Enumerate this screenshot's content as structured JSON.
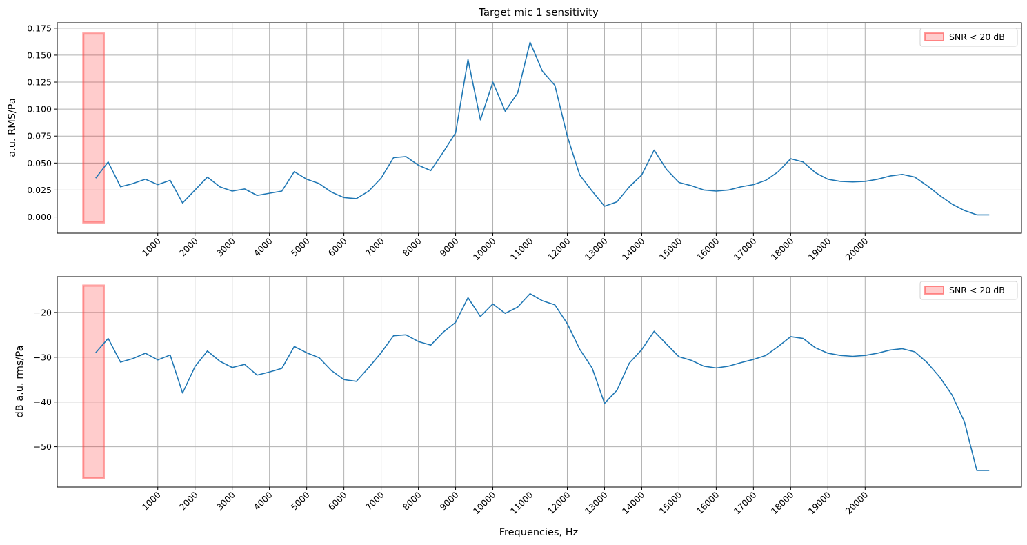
{
  "chart_data": [
    {
      "type": "line",
      "title": "Target mic 1 sensitivity",
      "xlabel": "",
      "ylabel": "a.u. RMS/Pa",
      "xlim": [
        -1700,
        24200
      ],
      "ylim": [
        -0.015,
        0.18
      ],
      "grid": true,
      "legend": {
        "placement": "top-right",
        "entries": [
          "SNR < 20 dB"
        ]
      },
      "x_ticks": [
        1000,
        2000,
        3000,
        4000,
        5000,
        6000,
        7000,
        8000,
        9000,
        10000,
        11000,
        12000,
        13000,
        14000,
        15000,
        16000,
        17000,
        18000,
        19000,
        20000
      ],
      "x_tick_labels": [
        "1000",
        "2000",
        "3000",
        "4000",
        "5000",
        "6000",
        "7000",
        "8000",
        "9000",
        "10000",
        "11000",
        "12000",
        "13000",
        "14000",
        "15000",
        "16000",
        "17000",
        "18000",
        "19000",
        "20000"
      ],
      "y_ticks": [
        0.0,
        0.025,
        0.05,
        0.075,
        0.1,
        0.125,
        0.15,
        0.175
      ],
      "y_tick_labels": [
        "0.000",
        "0.025",
        "0.050",
        "0.075",
        "0.100",
        "0.125",
        "0.150",
        "0.175"
      ],
      "shaded_region": {
        "label": "SNR < 20 dB",
        "x": [
          -1000,
          -450
        ],
        "y": [
          -0.005,
          0.17
        ]
      },
      "series": [
        {
          "x": [
            -667,
            -333,
            0,
            333,
            667,
            1000,
            1333,
            1667,
            2000,
            2333,
            2667,
            3000,
            3333,
            3667,
            4000,
            4333,
            4667,
            5000,
            5333,
            5667,
            6000,
            6333,
            6667,
            7000,
            7333,
            7667,
            8000,
            8333,
            8667,
            9000,
            9333,
            9667,
            10000,
            10333,
            10667,
            11000,
            11333,
            11667,
            12000,
            12333,
            12667,
            13000,
            13333,
            13667,
            14000,
            14333,
            14667,
            15000,
            15333,
            15667,
            16000,
            16333,
            16667,
            17000,
            17333,
            17667,
            18000,
            18333,
            18667,
            19000,
            19333,
            19667,
            20000,
            20333,
            20667,
            21000,
            21333,
            21667,
            22000,
            22333,
            22667,
            23000,
            23333
          ],
          "values": [
            0.036,
            0.051,
            0.028,
            0.031,
            0.035,
            0.03,
            0.034,
            0.013,
            0.025,
            0.037,
            0.028,
            0.024,
            0.026,
            0.02,
            0.022,
            0.024,
            0.042,
            0.035,
            0.031,
            0.023,
            0.018,
            0.017,
            0.024,
            0.036,
            0.055,
            0.056,
            0.048,
            0.043,
            0.06,
            0.078,
            0.146,
            0.09,
            0.125,
            0.098,
            0.115,
            0.162,
            0.135,
            0.122,
            0.075,
            0.039,
            0.024,
            0.01,
            0.014,
            0.028,
            0.039,
            0.062,
            0.044,
            0.032,
            0.029,
            0.025,
            0.024,
            0.025,
            0.028,
            0.03,
            0.034,
            0.042,
            0.054,
            0.051,
            0.041,
            0.035,
            0.033,
            0.0325,
            0.033,
            0.035,
            0.038,
            0.0395,
            0.037,
            0.029,
            0.02,
            0.012,
            0.006,
            0.002,
            0.002
          ]
        }
      ]
    },
    {
      "type": "line",
      "title": "",
      "xlabel": "Frequencies, Hz",
      "ylabel": "dB a.u. rms/Pa",
      "xlim": [
        -1700,
        24200
      ],
      "ylim": [
        -59,
        -12
      ],
      "grid": true,
      "legend": {
        "placement": "top-right",
        "entries": [
          "SNR < 20 dB"
        ]
      },
      "x_ticks": [
        1000,
        2000,
        3000,
        4000,
        5000,
        6000,
        7000,
        8000,
        9000,
        10000,
        11000,
        12000,
        13000,
        14000,
        15000,
        16000,
        17000,
        18000,
        19000,
        20000
      ],
      "x_tick_labels": [
        "1000",
        "2000",
        "3000",
        "4000",
        "5000",
        "6000",
        "7000",
        "8000",
        "9000",
        "10000",
        "11000",
        "12000",
        "13000",
        "14000",
        "15000",
        "16000",
        "17000",
        "18000",
        "19000",
        "20000"
      ],
      "y_ticks": [
        -50,
        -40,
        -30,
        -20
      ],
      "y_tick_labels": [
        "−50",
        "−40",
        "−30",
        "−20"
      ],
      "shaded_region": {
        "label": "SNR < 20 dB",
        "x": [
          -1000,
          -450
        ],
        "y": [
          -57,
          -14
        ]
      },
      "series": [
        {
          "x": [
            -667,
            -333,
            0,
            333,
            667,
            1000,
            1333,
            1667,
            2000,
            2333,
            2667,
            3000,
            3333,
            3667,
            4000,
            4333,
            4667,
            5000,
            5333,
            5667,
            6000,
            6333,
            6667,
            7000,
            7333,
            7667,
            8000,
            8333,
            8667,
            9000,
            9333,
            9667,
            10000,
            10333,
            10667,
            11000,
            11333,
            11667,
            12000,
            12333,
            12667,
            13000,
            13333,
            13667,
            14000,
            14333,
            14667,
            15000,
            15333,
            15667,
            16000,
            16333,
            16667,
            17000,
            17333,
            17667,
            18000,
            18333,
            18667,
            19000,
            19333,
            19667,
            20000,
            20333,
            20667,
            21000,
            21333,
            21667,
            22000,
            22333,
            22667,
            23000,
            23333
          ],
          "values": [
            -29.0,
            -25.8,
            -31.1,
            -30.3,
            -29.1,
            -30.6,
            -29.5,
            -38.0,
            -32.1,
            -28.6,
            -30.9,
            -32.3,
            -31.6,
            -34.0,
            -33.3,
            -32.5,
            -27.6,
            -29.0,
            -30.1,
            -33.0,
            -35.0,
            -35.4,
            -32.3,
            -29.0,
            -25.2,
            -25.0,
            -26.5,
            -27.3,
            -24.4,
            -22.2,
            -16.7,
            -20.9,
            -18.1,
            -20.2,
            -18.8,
            -15.8,
            -17.4,
            -18.3,
            -22.5,
            -28.2,
            -32.4,
            -40.3,
            -37.4,
            -31.3,
            -28.3,
            -24.2,
            -27.1,
            -29.9,
            -30.7,
            -32.0,
            -32.4,
            -32.0,
            -31.2,
            -30.5,
            -29.6,
            -27.6,
            -25.4,
            -25.8,
            -27.9,
            -29.1,
            -29.6,
            -29.8,
            -29.6,
            -29.1,
            -28.4,
            -28.1,
            -28.8,
            -31.2,
            -34.4,
            -38.4,
            -44.4,
            -55.3,
            -55.3
          ]
        }
      ]
    }
  ]
}
